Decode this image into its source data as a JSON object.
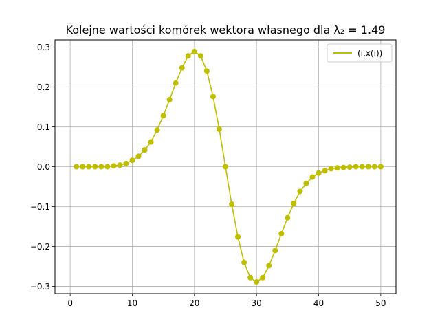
{
  "chart_data": {
    "type": "line",
    "title": "Kolejne wartości komórek wektora własnego dla λ₂ = 1.49",
    "xlabel": "",
    "ylabel": "",
    "xlim": [
      -2.45,
      52.45
    ],
    "ylim": [
      -0.318,
      0.318
    ],
    "xticks": [
      0,
      10,
      20,
      30,
      40,
      50
    ],
    "yticks": [
      -0.3,
      -0.2,
      -0.1,
      0.0,
      0.1,
      0.2,
      0.3
    ],
    "xtick_labels": [
      "0",
      "10",
      "20",
      "30",
      "40",
      "50"
    ],
    "ytick_labels": [
      "−0.3",
      "−0.2",
      "−0.1",
      "0.0",
      "0.1",
      "0.2",
      "0.3"
    ],
    "grid": true,
    "legend_position": "top-right",
    "series": [
      {
        "name": "(i,x(i))",
        "color": "#bfbf00",
        "marker": "circle",
        "x": [
          1,
          2,
          3,
          4,
          5,
          6,
          7,
          8,
          9,
          10,
          11,
          12,
          13,
          14,
          15,
          16,
          17,
          18,
          19,
          20,
          21,
          22,
          23,
          24,
          25,
          26,
          27,
          28,
          29,
          30,
          31,
          32,
          33,
          34,
          35,
          36,
          37,
          38,
          39,
          40,
          41,
          42,
          43,
          44,
          45,
          46,
          47,
          48,
          49,
          50
        ],
        "values": [
          0.0,
          0.0,
          0.0,
          0.0,
          0.0,
          0.0,
          0.002,
          0.004,
          0.008,
          0.016,
          0.026,
          0.042,
          0.062,
          0.092,
          0.128,
          0.168,
          0.21,
          0.248,
          0.278,
          0.289,
          0.278,
          0.24,
          0.176,
          0.094,
          0.0,
          -0.094,
          -0.176,
          -0.24,
          -0.278,
          -0.289,
          -0.278,
          -0.248,
          -0.21,
          -0.168,
          -0.128,
          -0.092,
          -0.062,
          -0.042,
          -0.026,
          -0.016,
          -0.01,
          -0.005,
          -0.003,
          -0.002,
          -0.001,
          0.0,
          0.0,
          0.0,
          0.0,
          0.0
        ]
      }
    ]
  }
}
